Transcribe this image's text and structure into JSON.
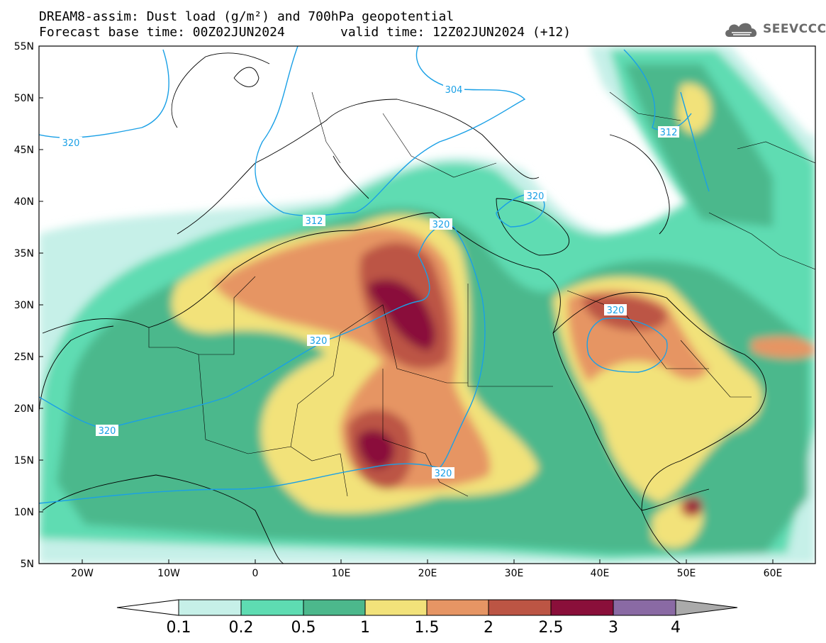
{
  "header": {
    "title_line1": "DREAM8-assim: Dust load (g/m²) and 700hPa geopotential",
    "title_line2": "Forecast base time: 00Z02JUN2024",
    "valid_time": "valid time: 12Z02JUN2024 (+12)",
    "logo_text": "SEEVCCC"
  },
  "map": {
    "lat_labels": [
      "55N",
      "50N",
      "45N",
      "40N",
      "35N",
      "30N",
      "25N",
      "20N",
      "15N",
      "10N",
      "5N"
    ],
    "lon_labels": [
      "20W",
      "10W",
      "0",
      "10E",
      "20E",
      "30E",
      "40E",
      "50E",
      "60E"
    ],
    "contour_labels": [
      "304",
      "312",
      "312",
      "320",
      "320",
      "320",
      "320",
      "320",
      "320",
      "320"
    ],
    "colors": {
      "c01": "#c6f0e8",
      "c02": "#5edcb2",
      "c05": "#4cb88c",
      "c1": "#f2e27a",
      "c15": "#e69564",
      "c2": "#bc5544",
      "c25": "#8a0f3a",
      "c3": "#8a6aa4",
      "c4": "#aaaaaa",
      "contour": "#1aa0e6"
    }
  },
  "colorbar": {
    "labels": [
      "0.1",
      "0.2",
      "0.5",
      "1",
      "1.5",
      "2",
      "2.5",
      "3",
      "4"
    ]
  }
}
